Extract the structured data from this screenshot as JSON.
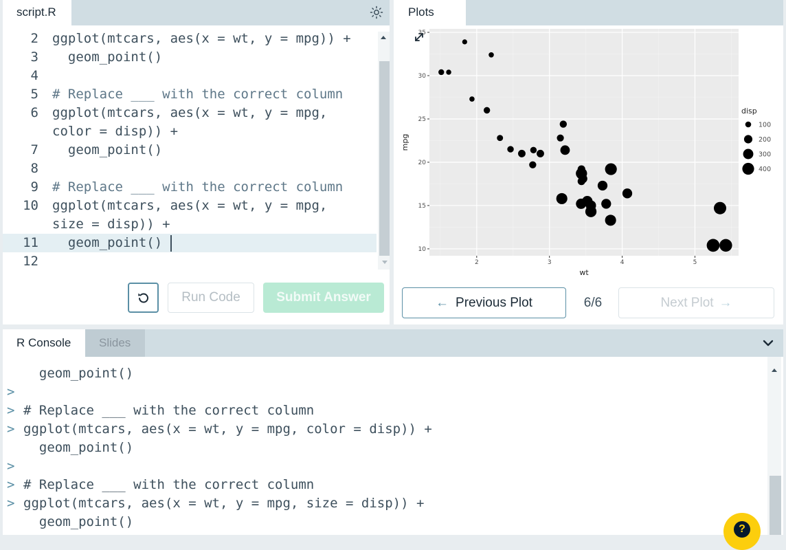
{
  "editor": {
    "tab_label": "script.R",
    "lines": [
      {
        "num": "2",
        "text": "ggplot(mtcars, aes(x = wt, y = mpg)) +",
        "comment": false
      },
      {
        "num": "3",
        "text": "  geom_point()",
        "comment": false
      },
      {
        "num": "4",
        "text": "",
        "comment": false
      },
      {
        "num": "5",
        "text": "# Replace ___ with the correct column",
        "comment": true
      },
      {
        "num": "6",
        "text": "ggplot(mtcars, aes(x = wt, y = mpg,",
        "comment": false
      },
      {
        "num": "",
        "text": "color = disp)) +",
        "comment": false
      },
      {
        "num": "7",
        "text": "  geom_point()",
        "comment": false
      },
      {
        "num": "8",
        "text": "",
        "comment": false
      },
      {
        "num": "9",
        "text": "# Replace ___ with the correct column",
        "comment": true
      },
      {
        "num": "10",
        "text": "ggplot(mtcars, aes(x = wt, y = mpg,",
        "comment": false
      },
      {
        "num": "",
        "text": "size = disp)) +",
        "comment": false
      },
      {
        "num": "11",
        "text": "  geom_point()",
        "comment": false
      },
      {
        "num": "12",
        "text": "",
        "comment": false
      }
    ],
    "active_line_index": 11,
    "run_label": "Run Code",
    "submit_label": "Submit Answer"
  },
  "plots": {
    "tab_label": "Plots",
    "prev_label": "Previous Plot",
    "next_label": "Next Plot",
    "counter": "6/6"
  },
  "console": {
    "tabs": [
      "R Console",
      "Slides"
    ],
    "lines": [
      {
        "prompt": "",
        "text": "  geom_point()"
      },
      {
        "prompt": ">",
        "text": ""
      },
      {
        "prompt": ">",
        "text": "# Replace ___ with the correct column"
      },
      {
        "prompt": ">",
        "text": "ggplot(mtcars, aes(x = wt, y = mpg, color = disp)) +"
      },
      {
        "prompt": "",
        "text": "  geom_point()"
      },
      {
        "prompt": ">",
        "text": ""
      },
      {
        "prompt": ">",
        "text": "# Replace ___ with the correct column"
      },
      {
        "prompt": ">",
        "text": "ggplot(mtcars, aes(x = wt, y = mpg, size = disp)) +"
      },
      {
        "prompt": "",
        "text": "  geom_point()"
      }
    ]
  },
  "help_label": "?",
  "icons": {
    "theme": "sun-icon",
    "expand": "expand-icon",
    "reset": "reset-icon",
    "prev": "arrow-left-icon",
    "next": "arrow-right-icon",
    "toggle": "chevron-down-icon"
  },
  "colors": {
    "accent": "#5a8fa5",
    "submit_disabled": "#b9ead4",
    "help": "#fcce0d",
    "panel_bg": "#ebebeb"
  },
  "chart_data": {
    "type": "scatter",
    "xlabel": "wt",
    "ylabel": "mpg",
    "xlim": [
      1.35,
      5.6
    ],
    "ylim": [
      9.2,
      35.4
    ],
    "x_ticks": [
      2,
      3,
      4,
      5
    ],
    "y_ticks": [
      10,
      15,
      20,
      25,
      30,
      35
    ],
    "grid": true,
    "legend": {
      "title": "disp",
      "placement": "right",
      "sizes": [
        100,
        200,
        300,
        400
      ]
    },
    "points": [
      {
        "x": 2.62,
        "y": 21.0,
        "size": 160
      },
      {
        "x": 2.875,
        "y": 21.0,
        "size": 160
      },
      {
        "x": 2.32,
        "y": 22.8,
        "size": 108
      },
      {
        "x": 3.215,
        "y": 21.4,
        "size": 258
      },
      {
        "x": 3.44,
        "y": 18.7,
        "size": 360
      },
      {
        "x": 3.46,
        "y": 18.1,
        "size": 225
      },
      {
        "x": 3.57,
        "y": 14.3,
        "size": 360
      },
      {
        "x": 3.19,
        "y": 24.4,
        "size": 147
      },
      {
        "x": 3.15,
        "y": 22.8,
        "size": 141
      },
      {
        "x": 3.44,
        "y": 19.2,
        "size": 168
      },
      {
        "x": 3.44,
        "y": 17.8,
        "size": 168
      },
      {
        "x": 4.07,
        "y": 16.4,
        "size": 276
      },
      {
        "x": 3.73,
        "y": 17.3,
        "size": 276
      },
      {
        "x": 3.78,
        "y": 15.2,
        "size": 276
      },
      {
        "x": 5.25,
        "y": 10.4,
        "size": 472
      },
      {
        "x": 5.424,
        "y": 10.4,
        "size": 460
      },
      {
        "x": 5.345,
        "y": 14.7,
        "size": 440
      },
      {
        "x": 2.2,
        "y": 32.4,
        "size": 79
      },
      {
        "x": 1.615,
        "y": 30.4,
        "size": 76
      },
      {
        "x": 1.835,
        "y": 33.9,
        "size": 71
      },
      {
        "x": 2.465,
        "y": 21.5,
        "size": 120
      },
      {
        "x": 3.52,
        "y": 15.5,
        "size": 318
      },
      {
        "x": 3.435,
        "y": 15.2,
        "size": 304
      },
      {
        "x": 3.84,
        "y": 13.3,
        "size": 350
      },
      {
        "x": 3.845,
        "y": 19.2,
        "size": 400
      },
      {
        "x": 1.935,
        "y": 27.3,
        "size": 79
      },
      {
        "x": 2.14,
        "y": 26.0,
        "size": 120
      },
      {
        "x": 1.513,
        "y": 30.4,
        "size": 95
      },
      {
        "x": 3.17,
        "y": 15.8,
        "size": 351
      },
      {
        "x": 2.77,
        "y": 19.7,
        "size": 145
      },
      {
        "x": 3.57,
        "y": 15.0,
        "size": 301
      },
      {
        "x": 2.78,
        "y": 21.4,
        "size": 121
      }
    ]
  }
}
